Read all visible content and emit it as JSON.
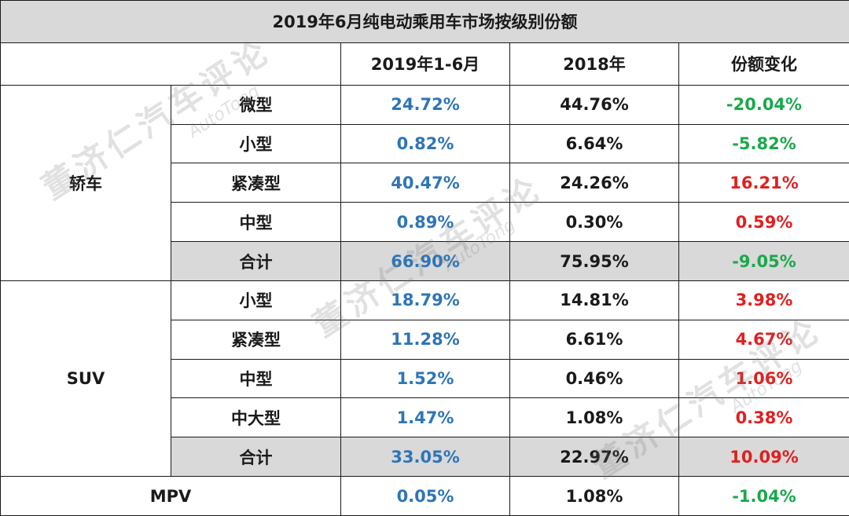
{
  "chart_data": {
    "type": "table",
    "title": "2019年6月纯电动乘用车市场按级别份额",
    "columns": [
      "",
      "",
      "2019年1-6月",
      "2018年",
      "份额变化"
    ],
    "groups": [
      {
        "category": "轿车",
        "rows": [
          {
            "segment": "微型",
            "h1_2019": "24.72%",
            "y2018": "44.76%",
            "change": "-20.04%",
            "trend": "down"
          },
          {
            "segment": "小型",
            "h1_2019": "0.82%",
            "y2018": "6.64%",
            "change": "-5.82%",
            "trend": "down"
          },
          {
            "segment": "紧凑型",
            "h1_2019": "40.47%",
            "y2018": "24.26%",
            "change": "16.21%",
            "trend": "up"
          },
          {
            "segment": "中型",
            "h1_2019": "0.89%",
            "y2018": "0.30%",
            "change": "0.59%",
            "trend": "up"
          },
          {
            "segment": "合计",
            "h1_2019": "66.90%",
            "y2018": "75.95%",
            "change": "-9.05%",
            "trend": "down",
            "subtotal": true
          }
        ]
      },
      {
        "category": "SUV",
        "rows": [
          {
            "segment": "小型",
            "h1_2019": "18.79%",
            "y2018": "14.81%",
            "change": "3.98%",
            "trend": "up"
          },
          {
            "segment": "紧凑型",
            "h1_2019": "11.28%",
            "y2018": "6.61%",
            "change": "4.67%",
            "trend": "up"
          },
          {
            "segment": "中型",
            "h1_2019": "1.52%",
            "y2018": "0.46%",
            "change": "1.06%",
            "trend": "up"
          },
          {
            "segment": "中大型",
            "h1_2019": "1.47%",
            "y2018": "1.08%",
            "change": "0.38%",
            "trend": "up"
          },
          {
            "segment": "合计",
            "h1_2019": "33.05%",
            "y2018": "22.97%",
            "change": "10.09%",
            "trend": "up",
            "subtotal": true
          }
        ]
      },
      {
        "category": "MPV",
        "rows": [
          {
            "segment": "",
            "h1_2019": "0.05%",
            "y2018": "1.08%",
            "change": "-1.04%",
            "trend": "down"
          }
        ]
      }
    ]
  },
  "colors": {
    "h1_2019": "#2e75b6",
    "negative": "#1aa84b",
    "positive": "#e02020",
    "header_bg": "#d9d9d9"
  },
  "watermark": {
    "cn": "董济仁汽车评论",
    "en": "AutoTong"
  }
}
